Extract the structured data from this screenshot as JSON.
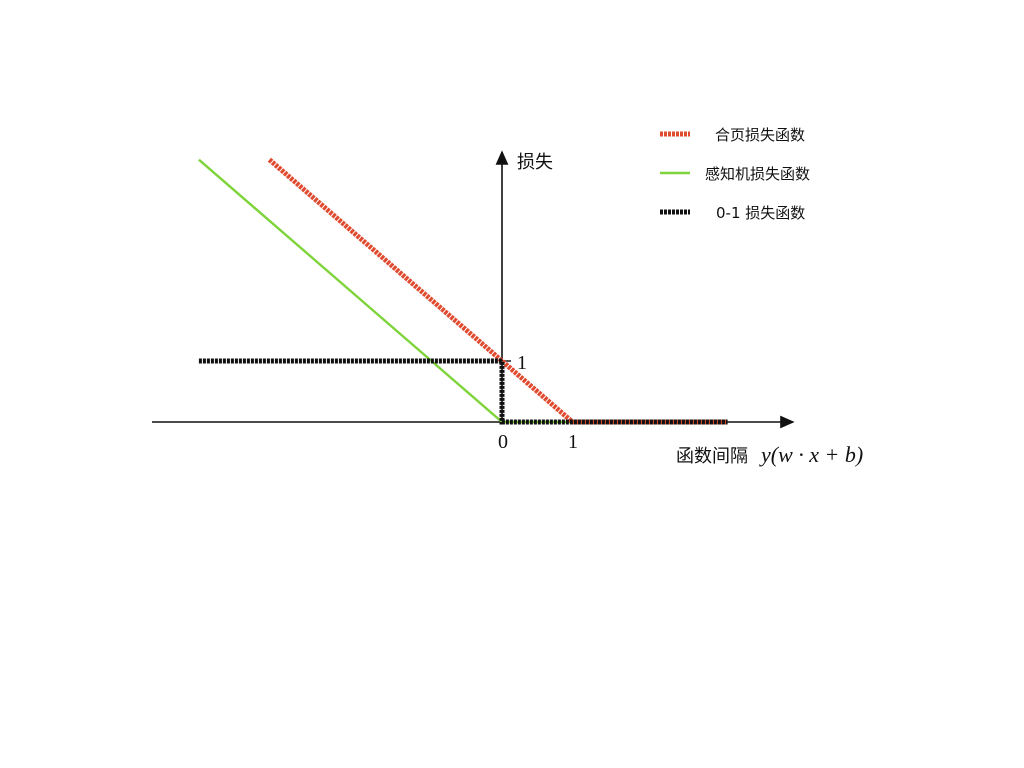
{
  "chart_data": {
    "type": "line",
    "title": "",
    "xlabel": "函数间隔",
    "xlabel_math": "y(w · x + b)",
    "ylabel": "损失",
    "x_ticks": [
      "0",
      "1"
    ],
    "y_ticks": [
      "1"
    ],
    "xlim": [
      -5,
      4.3
    ],
    "ylim": [
      0,
      4.2
    ],
    "grid": false,
    "legend_position": "top-right",
    "series": [
      {
        "name": "合页损失函数",
        "color": "#e04a2f",
        "style": "thick-rough",
        "x": [
          -3.3,
          1,
          3.2
        ],
        "y": [
          4.3,
          0,
          0
        ]
      },
      {
        "name": "感知机损失函数",
        "color": "#7ed43a",
        "style": "thin",
        "x": [
          -4.3,
          0,
          3.2
        ],
        "y": [
          4.3,
          0,
          0
        ]
      },
      {
        "name": "0-1 损失函数",
        "color": "#111111",
        "style": "thick-rough",
        "x": [
          -4.3,
          0,
          0,
          3.2
        ],
        "y": [
          1,
          1,
          0,
          0
        ]
      }
    ]
  }
}
